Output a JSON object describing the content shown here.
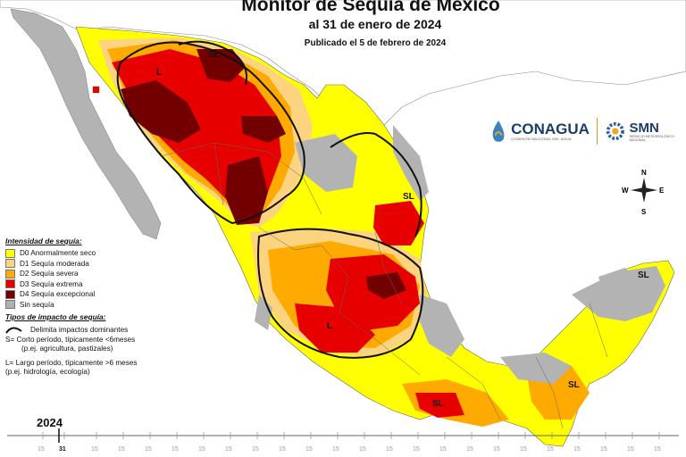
{
  "title": "Monitor de Sequía de México",
  "subtitle": "al 31 de enero de 2024",
  "published": "Publicado el 5 de febrero de 2024",
  "logos": {
    "conagua": "CONAGUA",
    "conagua_sub": "COMISIÓN NACIONAL DEL AGUA",
    "smn": "SMN",
    "smn_sub": "SERVICIO METEOROLÓGICO NACIONAL"
  },
  "compass": {
    "n": "N",
    "s": "S",
    "e": "E",
    "w": "W"
  },
  "legend": {
    "heading": "Intensidad de sequía:",
    "items": [
      {
        "label": "D0 Anormalmente seco",
        "color": "#ffff00"
      },
      {
        "label": "D1 Sequía moderada",
        "color": "#fcd37f"
      },
      {
        "label": "D2 Sequía severa",
        "color": "#ffaa00"
      },
      {
        "label": "D3 Sequía extrema",
        "color": "#e60000"
      },
      {
        "label": "D4 Sequía excepcional",
        "color": "#730000"
      },
      {
        "label": "Sin sequía",
        "color": "#b0b0b0"
      }
    ],
    "impact_heading": "Tipos de impacto de sequía:",
    "impact_line": "Delimita impactos dominantes",
    "impact_s": "S= Corto período, típicamente <6meses",
    "impact_s_ex": "(p.ej. agricultura, pastizales)",
    "impact_l": "L= Largo período, típicamente >6 meses",
    "impact_l_ex": "(p.ej. hidrología, ecología)"
  },
  "map_labels": {
    "sl_north": "SL",
    "l_northwest": "L",
    "sl_northeast": "SL",
    "l_center": "L",
    "sl_yucatan": "SL",
    "sl_south": "SL",
    "sl_southeast": "SL"
  },
  "timeline": {
    "year": "2024",
    "days": [
      "15",
      "31",
      "15",
      "15",
      "15",
      "15",
      "15",
      "15",
      "15",
      "15",
      "15",
      "15",
      "15",
      "15",
      "15",
      "15",
      "15",
      "15",
      "15",
      "15",
      "15",
      "15",
      "15",
      "15"
    ],
    "current": "31"
  }
}
